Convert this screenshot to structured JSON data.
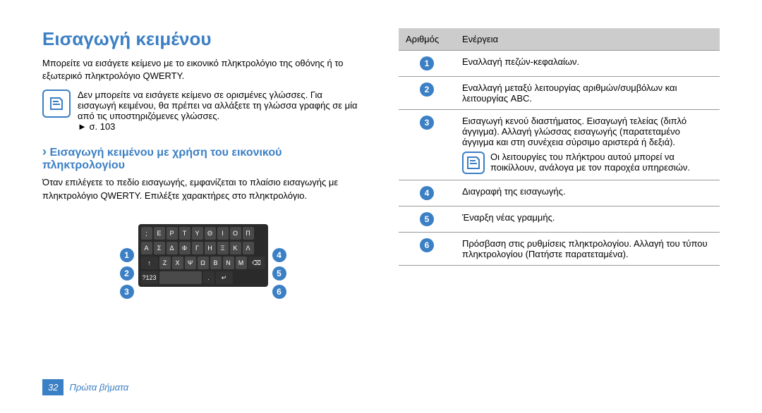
{
  "title": "Εισαγωγή κειμένου",
  "intro": "Μπορείτε να εισάγετε κείμενο με το εικονικό πληκτρολόγιο της οθόνης ή το εξωτερικό πληκτρολόγιο QWERTY.",
  "note1": "Δεν μπορείτε να εισάγετε κείμενο σε ορισμένες γλώσσες. Για εισαγωγή κειμένου, θα πρέπει να αλλάξετε τη γλώσσα γραφής σε μία από τις υποστηριζόμενες γλώσσες.",
  "note1_ref": "► σ. 103",
  "h2": "Εισαγωγή κειμένου με χρήση του εικονικού πληκτρολογίου",
  "p2": "Όταν επιλέγετε το πεδίο εισαγωγής, εμφανίζεται το πλαίσιο εισαγωγής με πληκτρολόγιο QWERTY. Επιλέξτε χαρακτήρες στο πληκτρολόγιο.",
  "kb_rows": [
    [
      ";",
      "Ε",
      "Ρ",
      "Τ",
      "Υ",
      "Θ",
      "Ι",
      "Ο",
      "Π"
    ],
    [
      "Α",
      "Σ",
      "Δ",
      "Φ",
      "Γ",
      "Η",
      "Ξ",
      "Κ",
      "Λ"
    ],
    [
      "↑",
      "Ζ",
      "Χ",
      "Ψ",
      "Ω",
      "Β",
      "Ν",
      "Μ",
      "⌫"
    ],
    [
      "?123",
      "",
      "",
      "",
      ".",
      "↵"
    ]
  ],
  "table": {
    "headers": [
      "Αριθμός",
      "Ενέργεια"
    ],
    "rows": [
      {
        "n": "1",
        "t": "Εναλλαγή πεζών-κεφαλαίων."
      },
      {
        "n": "2",
        "t": "Εναλλαγή μεταξύ λειτουργίας αριθμών/συμβόλων και λειτουργίας ABC."
      },
      {
        "n": "3",
        "t": "Εισαγωγή κενού διαστήματος. Εισαγωγή τελείας (διπλό άγγιγμα). Αλλαγή γλώσσας εισαγωγής (παρατεταμένο άγγιγμα και στη συνέχεια σύρσιμο αριστερά ή δεξιά).",
        "note": "Οι λειτουργίες του πλήκτρου αυτού μπορεί να ποικίλλουν, ανάλογα με τον παροχέα υπηρεσιών."
      },
      {
        "n": "4",
        "t": "Διαγραφή της εισαγωγής."
      },
      {
        "n": "5",
        "t": "Έναρξη νέας γραμμής."
      },
      {
        "n": "6",
        "t": "Πρόσβαση στις ρυθμίσεις πληκτρολογίου. Αλλαγή του τύπου πληκτρολογίου (Πατήστε παρατεταμένα)."
      }
    ]
  },
  "page_num": "32",
  "page_section": "Πρώτα βήματα",
  "colors": {
    "accent": "#3b7fc4"
  }
}
